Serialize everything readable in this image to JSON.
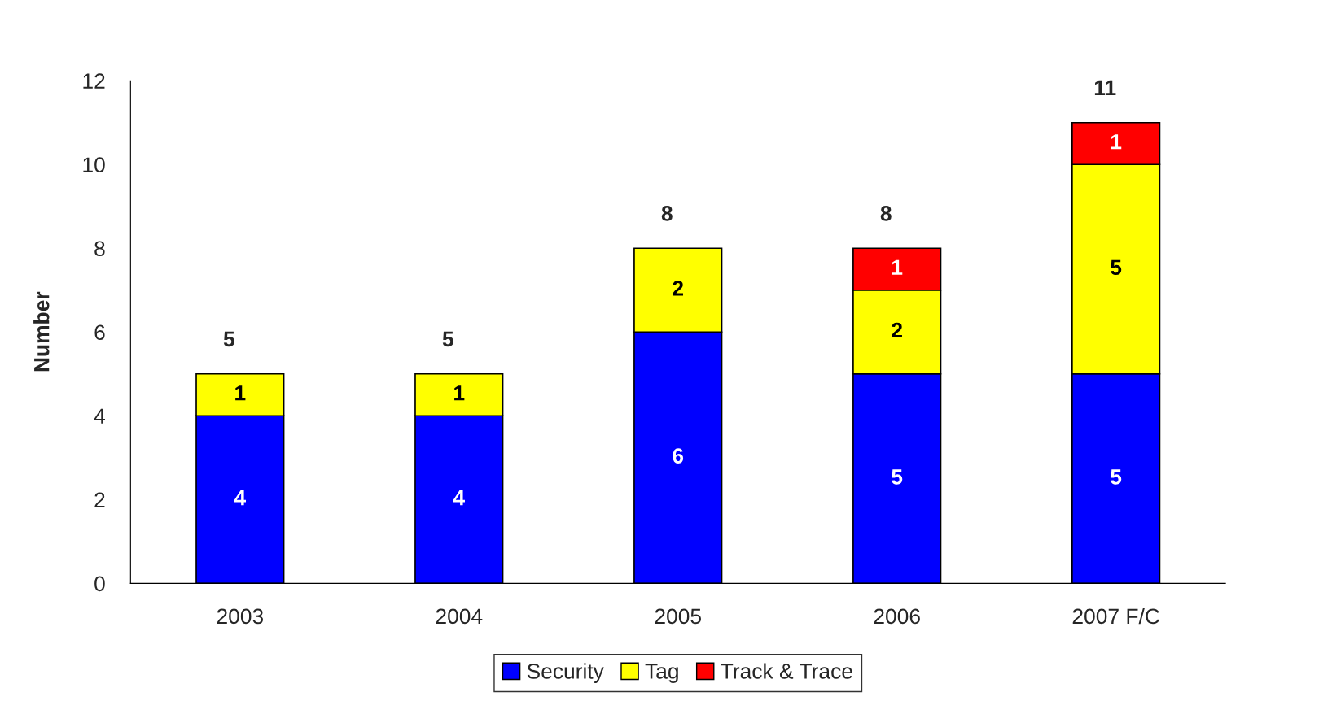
{
  "chart_data": {
    "type": "bar",
    "stacked": true,
    "ylabel": "Number",
    "categories": [
      "2003",
      "2004",
      "2005",
      "2006",
      "2007 F/C"
    ],
    "series": [
      {
        "name": "Security",
        "color": "#0000ff",
        "values": [
          4,
          4,
          6,
          5,
          5
        ]
      },
      {
        "name": "Tag",
        "color": "#ffff00",
        "values": [
          1,
          1,
          2,
          2,
          5
        ]
      },
      {
        "name": "Track & Trace",
        "color": "#ff0000",
        "values": [
          null,
          null,
          null,
          1,
          1
        ]
      }
    ],
    "ylim": [
      0,
      12
    ],
    "yticks": [
      0,
      2,
      4,
      6,
      8,
      10,
      12
    ],
    "data_labels": true,
    "totals": [
      "5",
      "5",
      "8",
      "8",
      "11"
    ],
    "grid": false,
    "legend": "bottom"
  }
}
